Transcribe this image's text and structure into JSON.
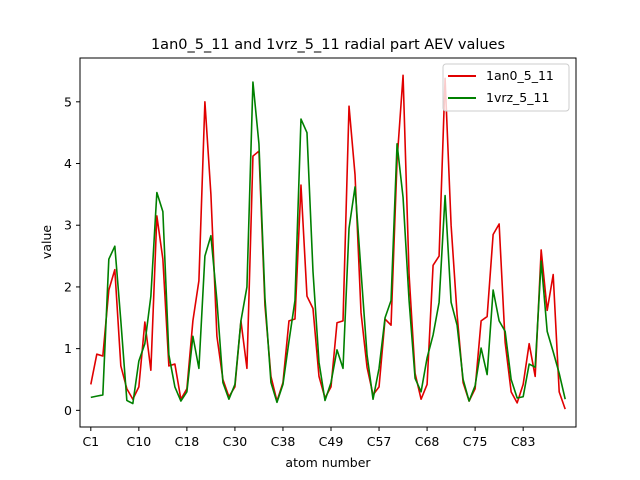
{
  "chart_data": {
    "type": "line",
    "title": "1an0_5_11 and 1vrz_5_11 radial part AEV values",
    "xlabel": "atom number",
    "ylabel": "value",
    "x_tick_labels": [
      "C1",
      "C10",
      "C18",
      "C30",
      "C38",
      "C49",
      "C57",
      "C68",
      "C75",
      "C83"
    ],
    "x_tick_indices": [
      0,
      8,
      16,
      24,
      32,
      40,
      48,
      56,
      64,
      72
    ],
    "ylim": [
      -0.27,
      5.71
    ],
    "y_ticks": [
      0,
      1,
      2,
      3,
      4,
      5
    ],
    "legend_position": "upper right",
    "series": [
      {
        "name": "1an0_5_11",
        "color": "#e00000",
        "values": [
          0.42,
          0.91,
          0.88,
          1.95,
          2.28,
          0.72,
          0.35,
          0.18,
          0.38,
          1.43,
          0.65,
          3.15,
          2.45,
          0.72,
          0.75,
          0.18,
          0.35,
          1.45,
          2.1,
          5.0,
          3.5,
          1.2,
          0.5,
          0.22,
          0.38,
          1.45,
          0.68,
          4.12,
          4.2,
          1.7,
          0.55,
          0.15,
          0.45,
          1.45,
          1.48,
          3.65,
          1.85,
          1.65,
          0.55,
          0.2,
          0.38,
          1.42,
          1.45,
          4.93,
          3.82,
          1.58,
          0.7,
          0.25,
          0.38,
          1.48,
          1.38,
          4.05,
          5.43,
          2.2,
          0.6,
          0.18,
          0.42,
          2.35,
          2.5,
          5.38,
          3.0,
          1.55,
          0.45,
          0.15,
          0.35,
          1.45,
          1.52,
          2.85,
          3.02,
          1.1,
          0.3,
          0.12,
          0.42,
          1.08,
          0.55,
          2.6,
          1.62,
          2.2,
          0.3,
          0.02
        ]
      },
      {
        "name": "1vrz_5_11",
        "color": "#008000",
        "values": [
          0.21,
          0.23,
          0.25,
          2.45,
          2.66,
          1.45,
          0.16,
          0.11,
          0.8,
          1.08,
          1.85,
          3.53,
          3.22,
          0.9,
          0.38,
          0.15,
          0.3,
          1.2,
          0.68,
          2.5,
          2.83,
          1.78,
          0.45,
          0.18,
          0.42,
          1.45,
          2.0,
          5.32,
          4.32,
          1.82,
          0.45,
          0.13,
          0.42,
          1.12,
          1.78,
          4.72,
          4.5,
          2.25,
          0.78,
          0.16,
          0.45,
          0.98,
          0.68,
          2.95,
          3.62,
          2.25,
          0.9,
          0.18,
          0.68,
          1.5,
          1.78,
          4.32,
          3.45,
          1.78,
          0.52,
          0.3,
          0.85,
          1.22,
          1.75,
          3.48,
          1.75,
          1.38,
          0.5,
          0.15,
          0.4,
          1.01,
          0.58,
          1.95,
          1.45,
          1.28,
          0.5,
          0.2,
          0.22,
          0.75,
          0.7,
          2.42,
          1.28,
          0.95,
          0.6,
          0.18
        ]
      }
    ]
  }
}
